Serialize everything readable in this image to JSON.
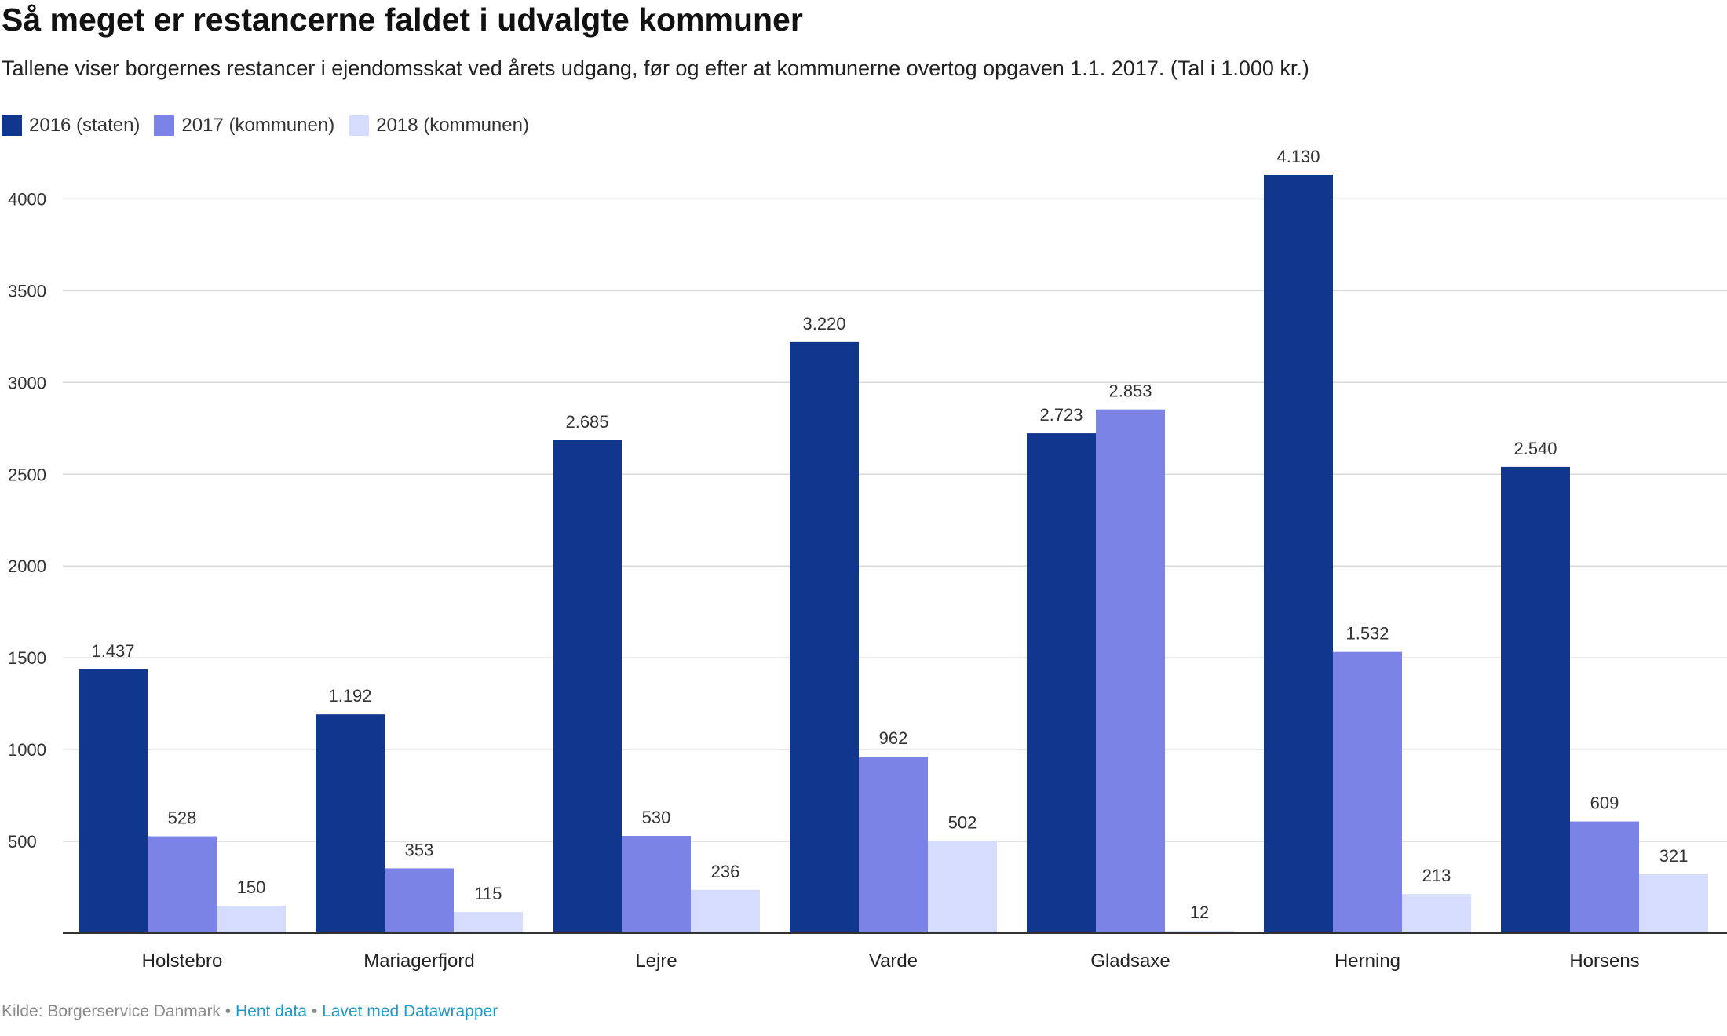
{
  "chart_data": {
    "type": "bar",
    "title": "Så meget er restancerne faldet i udvalgte kommuner",
    "subtitle": "Tallene viser borgernes restancer i ejendomsskat ved årets udgang, før og efter at kommunerne overtog opgaven 1.1. 2017. (Tal i 1.000 kr.)",
    "xlabel": "",
    "ylabel": "",
    "ylim": [
      0,
      4300
    ],
    "yticks": [
      500,
      1000,
      1500,
      2000,
      2500,
      3000,
      3500,
      4000
    ],
    "ytick_labels": [
      "500",
      "1000",
      "1500",
      "2000",
      "2500",
      "3000",
      "3500",
      "4000"
    ],
    "grid": true,
    "legend_position": "top-left",
    "categories": [
      "Holstebro",
      "Mariagerfjord",
      "Lejre",
      "Varde",
      "Gladsaxe",
      "Herning",
      "Horsens"
    ],
    "series": [
      {
        "name": "2016 (staten)",
        "color": "#11368e",
        "values": [
          1437,
          1192,
          2685,
          3220,
          2723,
          4130,
          2540
        ],
        "labels": [
          "1.437",
          "1.192",
          "2.685",
          "3.220",
          "2.723",
          "4.130",
          "2.540"
        ]
      },
      {
        "name": "2017 (kommunen)",
        "color": "#7b84e6",
        "values": [
          528,
          353,
          530,
          962,
          2853,
          1532,
          609
        ],
        "labels": [
          "528",
          "353",
          "530",
          "962",
          "2.853",
          "1.532",
          "609"
        ]
      },
      {
        "name": "2018 (kommunen)",
        "color": "#d6dcfe",
        "values": [
          150,
          115,
          236,
          502,
          12,
          213,
          321
        ],
        "labels": [
          "150",
          "115",
          "236",
          "502",
          "12",
          "213",
          "321"
        ]
      }
    ]
  },
  "footer": {
    "source": "Kilde: Borgerservice Danmark",
    "separator": " • ",
    "get_data": "Hent data",
    "made_with": "Lavet med Datawrapper"
  }
}
